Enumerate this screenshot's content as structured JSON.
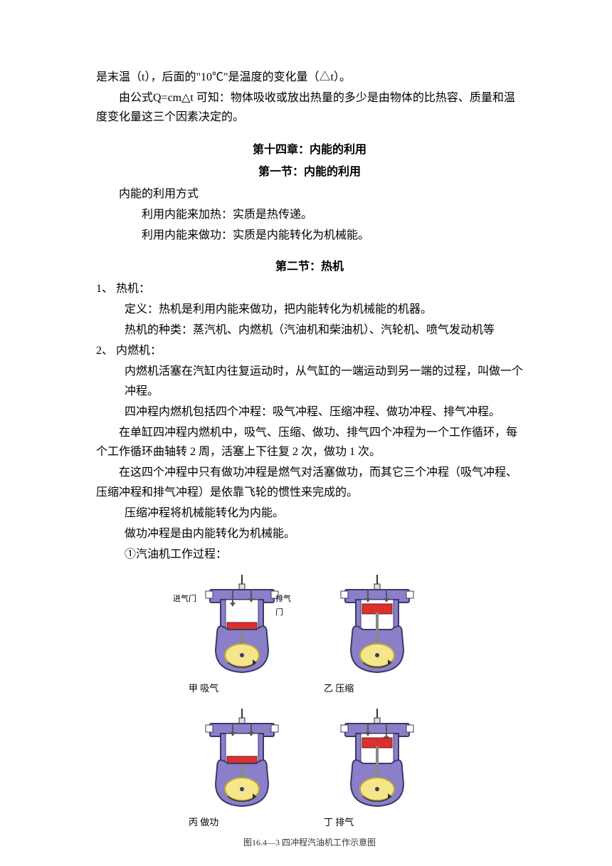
{
  "intro": {
    "line1": "是末温（t），后面的\"10℃\"是温度的变化量（△t）。",
    "line2": "由公式Q=cm△t 可知：物体吸收或放出热量的多少是由物体的比热容、质量和温度变化量这三个因素决定的。"
  },
  "chapter14": {
    "title": "第十四章：内能的利用",
    "section1": {
      "title": "第一节：内能的利用",
      "heading": "内能的利用方式",
      "item1": "利用内能来加热：实质是热传递。",
      "item2": "利用内能来做功：实质是内能转化为机械能。"
    },
    "section2": {
      "title": "第二节：热机",
      "p1": {
        "num": "1、 热机：",
        "def": "定义：热机是利用内能来做功，把内能转化为机械能的机器。",
        "types": "热机的种类：蒸汽机、内燃机（汽油机和柴油机）、汽轮机、喷气发动机等"
      },
      "p2": {
        "num": "2、 内燃机：",
        "l1": "内燃机活塞在汽缸内往复运动时，从气缸的一端运动到另一端的过程，叫做一个冲程。",
        "l2": "四冲程内燃机包括四个冲程：吸气冲程、压缩冲程、做功冲程、排气冲程。",
        "l3": "在单缸四冲程内燃机中，吸气、压缩、做功、排气四个冲程为一个工作循环，每个工作循环曲轴转 2 周，活塞上下往复 2 次，做功 1 次。",
        "l4": "在这四个冲程中只有做功冲程是燃气对活塞做功，而其它三个冲程（吸气冲程、压缩冲程和排气冲程）是依靠飞轮的惯性来完成的。",
        "l5": "压缩冲程将机械能转化为内能。",
        "l6": "做功冲程是由内能转化为机械能。",
        "l7": "①汽油机工作过程："
      }
    }
  },
  "diagram": {
    "valve_in": "进气门",
    "valve_out": "排气门",
    "labels": {
      "a": "甲  吸气",
      "b": "乙  压缩",
      "c": "丙  做功",
      "d": "丁  排气"
    },
    "caption": "图16.4—3  四冲程汽油机工作示意图",
    "colors": {
      "body_fill": "#8a7fc8",
      "body_stroke": "#3a3a6a",
      "chamber_fill": "#ffffff",
      "piston_fill": "#d93030",
      "piston_stroke": "#7a1818",
      "rod_fill": "#888888",
      "flywheel_fill": "#f5e68c",
      "flywheel_stroke": "#b8a838",
      "spark_stroke": "#333333",
      "valve_fill": "#555555",
      "arrow_fill": "#333333"
    }
  }
}
